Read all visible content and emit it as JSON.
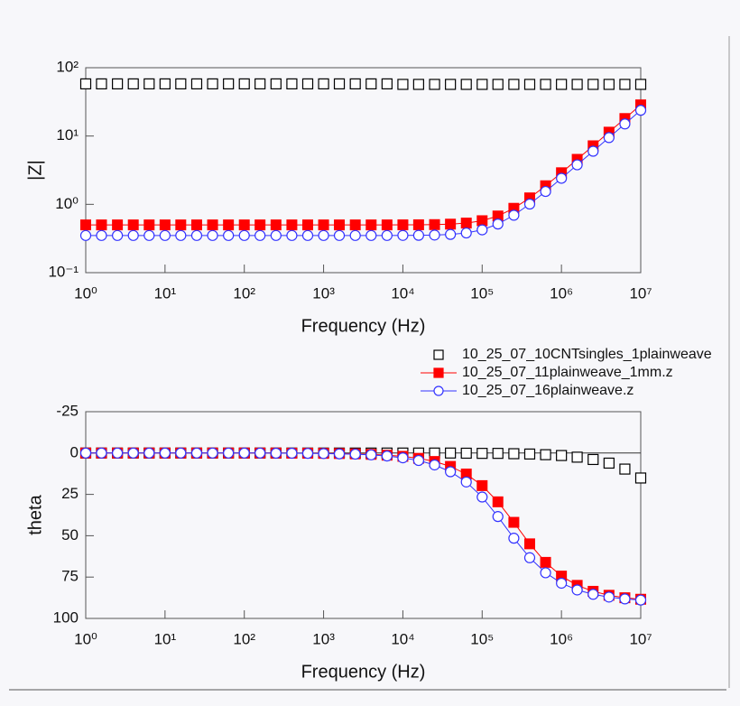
{
  "chart_data": [
    {
      "type": "scatter",
      "y_label": "|Z|",
      "x_label": "Frequency (Hz)",
      "xscale": "log",
      "yscale": "log",
      "xlim": [
        1,
        10000000
      ],
      "ylim": [
        0.1,
        100
      ],
      "xticks": [
        {
          "value": 1,
          "label": "10⁰"
        },
        {
          "value": 10,
          "label": "10¹"
        },
        {
          "value": 100,
          "label": "10²"
        },
        {
          "value": 1000,
          "label": "10³"
        },
        {
          "value": 10000,
          "label": "10⁴"
        },
        {
          "value": 100000,
          "label": "10⁵"
        },
        {
          "value": 1000000,
          "label": "10⁶"
        },
        {
          "value": 10000000,
          "label": "10⁷"
        }
      ],
      "yticks": [
        {
          "value": 0.1,
          "label": "10⁻¹"
        },
        {
          "value": 1,
          "label": "10⁰"
        },
        {
          "value": 10,
          "label": "10¹"
        },
        {
          "value": 100,
          "label": "10²"
        }
      ],
      "x": [
        1,
        1.58,
        2.51,
        3.98,
        6.31,
        10,
        15.8,
        25.1,
        39.8,
        63.1,
        100,
        158,
        251,
        398,
        631,
        1000,
        1580,
        2510,
        3980,
        6310,
        10000,
        15800,
        25100,
        39800,
        63100,
        100000,
        158000,
        251000,
        398000,
        631000,
        1000000,
        1580000,
        2510000,
        3980000,
        6310000,
        10000000
      ],
      "series": [
        {
          "color": "#000000",
          "marker": "square-open",
          "line": false,
          "values": [
            58,
            58,
            58,
            58,
            58,
            58,
            58,
            58,
            58,
            58,
            58,
            58,
            58,
            58,
            58,
            58,
            58,
            58,
            58,
            58,
            57,
            57,
            57,
            57,
            57,
            57,
            57,
            57,
            57,
            57,
            57,
            57,
            57,
            57,
            57,
            57
          ]
        },
        {
          "color": "#ff0000",
          "marker": "square",
          "line": true,
          "values": [
            0.5,
            0.5,
            0.5,
            0.5,
            0.5,
            0.5,
            0.5,
            0.5,
            0.5,
            0.5,
            0.5,
            0.5,
            0.5,
            0.5,
            0.5,
            0.5,
            0.5,
            0.5,
            0.5,
            0.5,
            0.501,
            0.502,
            0.505,
            0.513,
            0.532,
            0.576,
            0.675,
            0.875,
            1.243,
            1.871,
            2.901,
            4.556,
            7.194,
            11.386,
            18.036,
            28.576
          ]
        },
        {
          "color": "#3333ff",
          "marker": "circle-open",
          "line": true,
          "values": [
            0.35,
            0.35,
            0.35,
            0.35,
            0.35,
            0.35,
            0.35,
            0.35,
            0.35,
            0.35,
            0.35,
            0.35,
            0.35,
            0.35,
            0.35,
            0.35,
            0.35,
            0.35,
            0.35,
            0.35,
            0.351,
            0.352,
            0.355,
            0.363,
            0.381,
            0.423,
            0.515,
            0.693,
            1.01,
            1.543,
            2.407,
            3.791,
            5.991,
            9.485,
            15.03,
            23.81
          ]
        }
      ]
    },
    {
      "type": "scatter",
      "y_label": "theta",
      "x_label": "Frequency (Hz)",
      "xscale": "log",
      "yscale": "linear",
      "y_inverted": true,
      "zero_line": true,
      "legend": "top-right",
      "xlim": [
        1,
        10000000
      ],
      "ylim": [
        -25,
        100
      ],
      "xticks": [
        {
          "value": 1,
          "label": "10⁰"
        },
        {
          "value": 10,
          "label": "10¹"
        },
        {
          "value": 100,
          "label": "10²"
        },
        {
          "value": 1000,
          "label": "10³"
        },
        {
          "value": 10000,
          "label": "10⁴"
        },
        {
          "value": 100000,
          "label": "10⁵"
        },
        {
          "value": 1000000,
          "label": "10⁶"
        },
        {
          "value": 10000000,
          "label": "10⁷"
        }
      ],
      "yticks": [
        -25,
        0,
        25,
        50,
        75,
        100
      ],
      "x": [
        1,
        1.58,
        2.51,
        3.98,
        6.31,
        10,
        15.8,
        25.1,
        39.8,
        63.1,
        100,
        158,
        251,
        398,
        631,
        1000,
        1580,
        2510,
        3980,
        6310,
        10000,
        15800,
        25100,
        39800,
        63100,
        100000,
        158000,
        251000,
        398000,
        631000,
        1000000,
        1580000,
        2510000,
        3980000,
        6310000,
        10000000
      ],
      "series": [
        {
          "name": "10_25_07_10CNTsingles_1plainweave",
          "color": "#000000",
          "marker": "square-open",
          "line": false,
          "values": [
            0,
            0,
            0,
            0,
            0,
            0,
            0,
            0,
            0,
            0,
            0,
            0,
            0,
            0,
            0,
            0,
            0,
            0,
            0,
            0,
            0,
            0,
            0,
            0,
            0.1,
            0.2,
            0.2,
            0.4,
            0.6,
            1.0,
            1.5,
            2.5,
            3.9,
            6.1,
            9.7,
            15.1
          ]
        },
        {
          "name": "10_25_07_11plainweave_1mm.z",
          "color": "#ff0000",
          "marker": "square",
          "line": true,
          "values": [
            0,
            0,
            0,
            0,
            0,
            0,
            0,
            0,
            0,
            0,
            0,
            0,
            0,
            0.1,
            0.1,
            0.2,
            0.3,
            0.5,
            0.8,
            1.3,
            2.0,
            3.2,
            5.1,
            8.1,
            12.7,
            19.7,
            29.5,
            41.9,
            54.9,
            66.1,
            74.4,
            80.0,
            83.6,
            86.0,
            87.5,
            88.4
          ]
        },
        {
          "name": "10_25_07_16plainweave.z",
          "color": "#3333ff",
          "marker": "circle-open",
          "line": true,
          "values": [
            0,
            0,
            0,
            0,
            0,
            0,
            0,
            0,
            0,
            0,
            0,
            0,
            0.1,
            0.1,
            0.2,
            0.3,
            0.5,
            0.7,
            1.1,
            1.8,
            2.9,
            4.5,
            7.2,
            11.3,
            17.5,
            26.6,
            38.4,
            51.5,
            63.3,
            72.4,
            78.7,
            82.8,
            85.4,
            87.1,
            88.2,
            88.9
          ]
        }
      ]
    }
  ]
}
